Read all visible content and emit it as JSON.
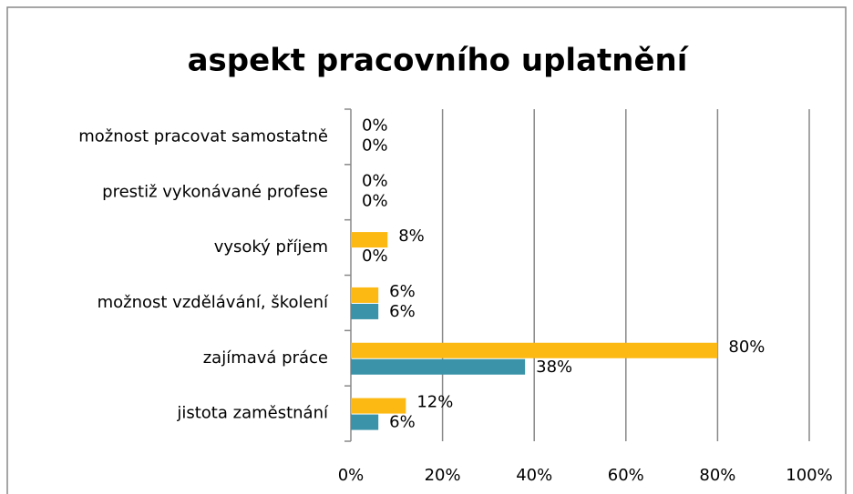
{
  "chart_data": {
    "type": "barh",
    "title": "aspekt pracovního uplatnění",
    "categories": [
      "jistota zaměstnání",
      "zajímavá práce",
      "možnost vzdělávání, školení",
      "vysoký příjem",
      "prestiž vykonávané profese",
      "možnost pracovat samostatně"
    ],
    "series": [
      {
        "color": "#fdb913",
        "values": [
          12,
          80,
          6,
          8,
          0,
          0
        ],
        "value_labels": [
          "12%",
          "80%",
          "6%",
          "8%",
          "0%",
          "0%"
        ]
      },
      {
        "color": "#3a93a8",
        "values": [
          6,
          38,
          6,
          0,
          0,
          0
        ],
        "value_labels": [
          "6%",
          "38%",
          "6%",
          "0%",
          "0%",
          "0%"
        ]
      }
    ],
    "xlim": [
      0,
      100
    ],
    "xticks": [
      {
        "value": 0,
        "label": "0%"
      },
      {
        "value": 20,
        "label": "20%"
      },
      {
        "value": 40,
        "label": "40%"
      },
      {
        "value": 60,
        "label": "60%"
      },
      {
        "value": 80,
        "label": "80%"
      },
      {
        "value": 100,
        "label": "100%"
      }
    ],
    "grid": true
  }
}
